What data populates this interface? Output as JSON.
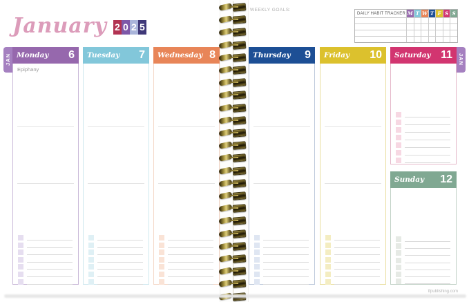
{
  "title": {
    "month": "January",
    "year_digits": [
      {
        "digit": "2",
        "color": "#b23352"
      },
      {
        "digit": "0",
        "color": "#7e58a8"
      },
      {
        "digit": "2",
        "color": "#a9b4da"
      },
      {
        "digit": "5",
        "color": "#3f3878"
      }
    ]
  },
  "tabs": {
    "left": "JAN",
    "right": "JAN"
  },
  "weekly_goals_label": "WEEKLY GOALS:",
  "habit_tracker": {
    "label": "DAILY HABIT TRACKER",
    "day_letters": [
      {
        "letter": "M",
        "color": "#9668ad"
      },
      {
        "letter": "T",
        "color": "#82c7da"
      },
      {
        "letter": "W",
        "color": "#e88558"
      },
      {
        "letter": "T",
        "color": "#1d4f95"
      },
      {
        "letter": "F",
        "color": "#dcc12d"
      },
      {
        "letter": "S",
        "color": "#d23570"
      },
      {
        "letter": "S",
        "color": "#80a892"
      }
    ],
    "empty_rows": 4
  },
  "days": [
    {
      "name": "Monday",
      "date": "6",
      "color": "#9668ad",
      "tint": "#c9b8d8",
      "check": "#e6def0",
      "note": "Epiphany"
    },
    {
      "name": "Tuesday",
      "date": "7",
      "color": "#82c7da",
      "tint": "#cfe8ef",
      "check": "#dff0f5",
      "note": ""
    },
    {
      "name": "Wednesday",
      "date": "8",
      "color": "#e88558",
      "tint": "#f4d7c7",
      "check": "#fae3d6",
      "note": ""
    },
    {
      "name": "Thursday",
      "date": "9",
      "color": "#1d4f95",
      "tint": "#bcc8da",
      "check": "#dfe6f2",
      "note": ""
    },
    {
      "name": "Friday",
      "date": "10",
      "color": "#dcc12d",
      "tint": "#e9dfa0",
      "check": "#f4edc2",
      "note": ""
    },
    {
      "name": "Saturday",
      "date": "11",
      "color": "#d23570",
      "tint": "#e5b9ca",
      "check": "#f7d8e3",
      "note": ""
    },
    {
      "name": "Sunday",
      "date": "12",
      "color": "#80a892",
      "tint": "#c2d2c7",
      "check": "#e6eae5",
      "note": ""
    }
  ],
  "checklist_rows": 7,
  "footer": {
    "website": "tfpublishing.com"
  }
}
